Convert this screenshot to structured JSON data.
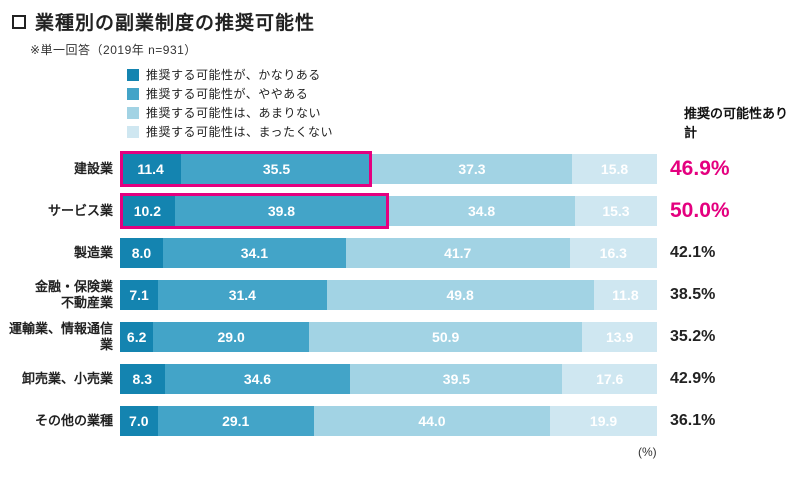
{
  "title": "業種別の副業制度の推奨可能性",
  "subtitle": "※単一回答（2019年 n=931）",
  "legend": {
    "items": [
      {
        "label": "推奨する可能性が、かなりある",
        "color": "#1484b0"
      },
      {
        "label": "推奨する可能性が、ややある",
        "color": "#43a4c8"
      },
      {
        "label": "推奨する可能性は、あまりない",
        "color": "#a2d3e4"
      },
      {
        "label": "推奨する可能性は、まったくない",
        "color": "#cfe7f1"
      }
    ]
  },
  "right_header": {
    "line1": "推奨の可能性あり",
    "line2": "計"
  },
  "chart_data": {
    "type": "bar",
    "orientation": "horizontal",
    "stacked": true,
    "unit": "(%)",
    "xlim": [
      0,
      100
    ],
    "categories": [
      "建設業",
      "サービス業",
      "製造業",
      "金融・保険業\n不動産業",
      "運輸業、情報通信業",
      "卸売業、小売業",
      "その他の業種"
    ],
    "series": [
      {
        "name": "推奨する可能性が、かなりある",
        "color": "#1484b0",
        "values": [
          11.4,
          10.2,
          8.0,
          7.1,
          6.2,
          8.3,
          7.0
        ]
      },
      {
        "name": "推奨する可能性が、ややある",
        "color": "#43a4c8",
        "values": [
          35.5,
          39.8,
          34.1,
          31.4,
          29.0,
          34.6,
          29.1
        ]
      },
      {
        "name": "推奨する可能性は、あまりない",
        "color": "#a2d3e4",
        "values": [
          37.3,
          34.8,
          41.7,
          49.8,
          50.9,
          39.5,
          44.0
        ]
      },
      {
        "name": "推奨する可能性は、まったくない",
        "color": "#cfe7f1",
        "values": [
          15.8,
          15.3,
          16.3,
          11.8,
          13.9,
          17.6,
          19.9
        ]
      }
    ],
    "totals": [
      "46.9%",
      "50.0%",
      "42.1%",
      "38.5%",
      "35.2%",
      "42.9%",
      "36.1%"
    ],
    "highlighted_rows": [
      0,
      1
    ],
    "highlight_color": "#e4007f"
  }
}
